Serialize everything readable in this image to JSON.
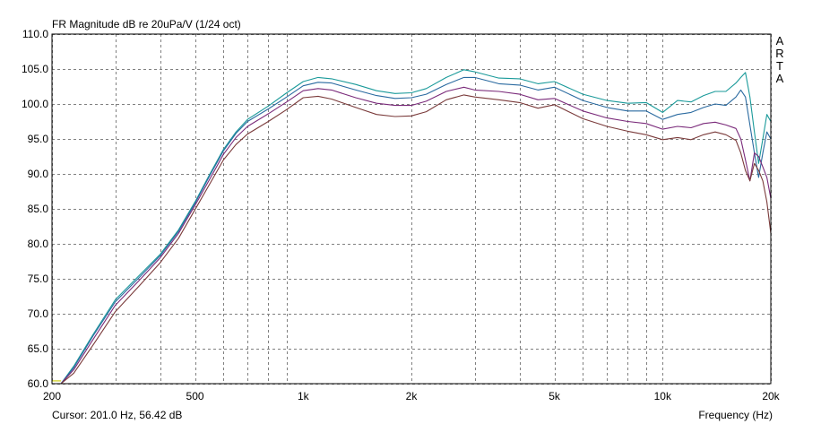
{
  "chart_data": {
    "type": "line",
    "title": "FR Magnitude dB re 20uPa/V (1/24 oct)",
    "brand": [
      "A",
      "R",
      "T",
      "A"
    ],
    "cursor": "Cursor: 201.0 Hz, 56.42 dB",
    "xlabel": "Frequency (Hz)",
    "ylabel": "",
    "xscale": "log",
    "xlim": [
      200,
      20000
    ],
    "ylim": [
      60,
      110
    ],
    "grid": true,
    "x_ticks": [
      {
        "value": 200,
        "label": "200"
      },
      {
        "value": 500,
        "label": "500"
      },
      {
        "value": 1000,
        "label": "1k"
      },
      {
        "value": 2000,
        "label": "2k"
      },
      {
        "value": 5000,
        "label": "5k"
      },
      {
        "value": 10000,
        "label": "10k"
      },
      {
        "value": 20000,
        "label": "20k"
      }
    ],
    "y_ticks": [
      {
        "value": 60,
        "label": "60.0"
      },
      {
        "value": 65,
        "label": "65.0"
      },
      {
        "value": 70,
        "label": "70.0"
      },
      {
        "value": 75,
        "label": "75.0"
      },
      {
        "value": 80,
        "label": "80.0"
      },
      {
        "value": 85,
        "label": "85.0"
      },
      {
        "value": 90,
        "label": "90.0"
      },
      {
        "value": 95,
        "label": "95.0"
      },
      {
        "value": 100,
        "label": "100.0"
      },
      {
        "value": 105,
        "label": "105.0"
      },
      {
        "value": 110,
        "label": "110.0"
      }
    ],
    "series": [
      {
        "color": "#1a9a9a",
        "x": [
          212,
          230,
          260,
          300,
          350,
          400,
          450,
          500,
          550,
          600,
          650,
          700,
          800,
          900,
          1000,
          1100,
          1200,
          1400,
          1600,
          1800,
          2000,
          2200,
          2500,
          2800,
          3000,
          3500,
          4000,
          4500,
          5000,
          6000,
          7000,
          8000,
          9000,
          10000,
          11000,
          12000,
          13000,
          14000,
          15000,
          16000,
          16500,
          17000,
          17500,
          18000,
          18500,
          19000,
          19500,
          20000
        ],
        "y": [
          60.0,
          62.5,
          67.0,
          72.0,
          75.5,
          78.5,
          82.0,
          86.0,
          90.0,
          93.5,
          96.0,
          97.8,
          99.7,
          101.6,
          103.2,
          103.8,
          103.6,
          102.8,
          101.9,
          101.5,
          101.6,
          102.2,
          103.8,
          104.9,
          104.6,
          103.7,
          103.6,
          102.9,
          103.2,
          101.4,
          100.5,
          100.1,
          100.2,
          98.8,
          100.5,
          100.3,
          101.2,
          101.8,
          101.8,
          103.0,
          103.8,
          104.5,
          101.0,
          96.0,
          91.5,
          95.0,
          98.5,
          97.5
        ]
      },
      {
        "color": "#2a6aa0",
        "x": [
          212,
          230,
          260,
          300,
          350,
          400,
          450,
          500,
          550,
          600,
          650,
          700,
          800,
          900,
          1000,
          1100,
          1200,
          1400,
          1600,
          1800,
          2000,
          2200,
          2500,
          2800,
          3000,
          3500,
          4000,
          4500,
          5000,
          6000,
          7000,
          8000,
          9000,
          10000,
          11000,
          12000,
          13000,
          14000,
          15000,
          16000,
          16500,
          17000,
          17500,
          18000,
          18500,
          19000,
          19500,
          20000
        ],
        "y": [
          60.0,
          62.3,
          66.8,
          71.7,
          75.2,
          78.3,
          81.8,
          85.8,
          89.8,
          93.3,
          95.8,
          97.5,
          99.3,
          101.0,
          102.6,
          103.1,
          103.0,
          102.0,
          101.2,
          100.8,
          100.9,
          101.4,
          102.8,
          103.8,
          103.8,
          102.9,
          102.7,
          102.0,
          102.4,
          100.5,
          99.5,
          99.0,
          99.0,
          97.8,
          98.5,
          98.8,
          99.5,
          100.0,
          99.8,
          101.0,
          102.0,
          101.0,
          97.0,
          93.0,
          89.5,
          93.0,
          96.0,
          95.0
        ]
      },
      {
        "color": "#7a2a7a",
        "x": [
          212,
          230,
          260,
          300,
          350,
          400,
          450,
          500,
          550,
          600,
          650,
          700,
          800,
          900,
          1000,
          1100,
          1200,
          1400,
          1600,
          1800,
          2000,
          2200,
          2500,
          2800,
          3000,
          3500,
          4000,
          4500,
          5000,
          6000,
          7000,
          8000,
          9000,
          10000,
          11000,
          12000,
          13000,
          14000,
          15000,
          16000,
          16500,
          17000,
          17500,
          18000,
          18500,
          19000,
          19500,
          20000
        ],
        "y": [
          60.0,
          62.0,
          66.3,
          71.2,
          74.8,
          78.0,
          81.5,
          85.5,
          89.3,
          92.8,
          95.2,
          96.8,
          98.6,
          100.3,
          101.9,
          102.2,
          102.0,
          100.9,
          100.1,
          99.8,
          99.8,
          100.4,
          101.8,
          102.4,
          102.0,
          101.8,
          101.4,
          100.6,
          100.8,
          99.0,
          98.0,
          97.5,
          97.2,
          96.4,
          96.8,
          96.6,
          97.2,
          97.4,
          97.0,
          96.5,
          95.0,
          92.0,
          89.0,
          93.0,
          92.5,
          91.0,
          89.5,
          86.5
        ]
      },
      {
        "color": "#7a3a3a",
        "x": [
          212,
          230,
          260,
          300,
          350,
          400,
          450,
          500,
          550,
          600,
          650,
          700,
          800,
          900,
          1000,
          1100,
          1200,
          1400,
          1600,
          1800,
          2000,
          2200,
          2500,
          2800,
          3000,
          3500,
          4000,
          4500,
          5000,
          6000,
          7000,
          8000,
          9000,
          10000,
          11000,
          12000,
          13000,
          14000,
          15000,
          16000,
          16500,
          17000,
          17500,
          18000,
          18500,
          19000,
          19500,
          20000
        ],
        "y": [
          60.0,
          61.5,
          65.5,
          70.3,
          74.0,
          77.3,
          80.8,
          84.9,
          88.6,
          92.0,
          94.2,
          95.7,
          97.5,
          99.2,
          100.9,
          101.1,
          100.7,
          99.5,
          98.5,
          98.2,
          98.3,
          98.9,
          100.6,
          101.3,
          101.0,
          100.6,
          100.2,
          99.4,
          99.9,
          97.9,
          96.8,
          96.1,
          95.6,
          94.9,
          95.2,
          94.9,
          95.6,
          96.0,
          95.6,
          94.8,
          93.0,
          90.5,
          89.0,
          91.5,
          90.5,
          89.0,
          86.0,
          81.5
        ]
      },
      {
        "color": "#c8c800",
        "x": [
          200,
          212
        ],
        "y": [
          60.4,
          60.4
        ]
      }
    ]
  }
}
